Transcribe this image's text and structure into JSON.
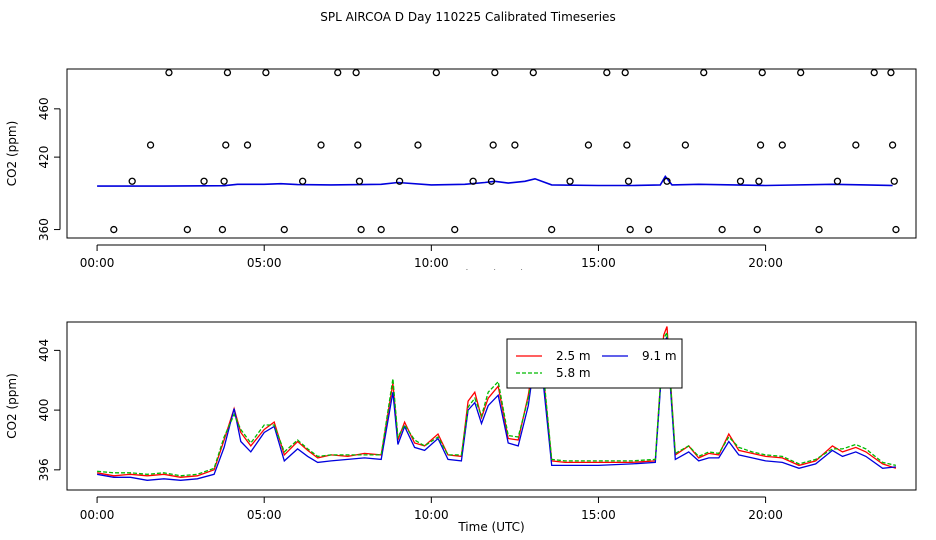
{
  "page_title": "SPL AIRCOA D  Day 110225  Calibrated Timeseries",
  "colors": {
    "red": "#ff0000",
    "green": "#00bb00",
    "blue": "#0000dd",
    "black": "#000000"
  },
  "chart_data": [
    {
      "type": "scatter+line",
      "xlabel": "Time (UTC)",
      "ylabel": "CO2 (ppm)",
      "xticks": [
        "00:00",
        "05:00",
        "10:00",
        "15:00",
        "20:00"
      ],
      "xtick_hours": [
        0,
        5,
        10,
        15,
        20
      ],
      "yticks": [
        360,
        420,
        460
      ],
      "ytick_labels": [
        "360",
        "420",
        "460"
      ],
      "xlim": [
        -0.9,
        24.5
      ],
      "ylim": [
        353,
        493
      ],
      "circles": [
        {
          "x": 0.5,
          "y": 360
        },
        {
          "x": 1.05,
          "y": 400
        },
        {
          "x": 1.6,
          "y": 430
        },
        {
          "x": 2.15,
          "y": 490
        },
        {
          "x": 2.7,
          "y": 360
        },
        {
          "x": 3.2,
          "y": 400
        },
        {
          "x": 3.75,
          "y": 360
        },
        {
          "x": 3.8,
          "y": 400
        },
        {
          "x": 3.85,
          "y": 430
        },
        {
          "x": 3.9,
          "y": 490
        },
        {
          "x": 4.5,
          "y": 430
        },
        {
          "x": 5.05,
          "y": 490
        },
        {
          "x": 5.6,
          "y": 360
        },
        {
          "x": 6.15,
          "y": 400
        },
        {
          "x": 6.7,
          "y": 430
        },
        {
          "x": 7.2,
          "y": 490
        },
        {
          "x": 7.75,
          "y": 490
        },
        {
          "x": 7.8,
          "y": 430
        },
        {
          "x": 7.85,
          "y": 400
        },
        {
          "x": 7.9,
          "y": 360
        },
        {
          "x": 8.5,
          "y": 360
        },
        {
          "x": 9.05,
          "y": 400
        },
        {
          "x": 9.6,
          "y": 430
        },
        {
          "x": 10.15,
          "y": 490
        },
        {
          "x": 10.7,
          "y": 360
        },
        {
          "x": 11.25,
          "y": 400
        },
        {
          "x": 11.8,
          "y": 400
        },
        {
          "x": 11.85,
          "y": 430
        },
        {
          "x": 11.9,
          "y": 490
        },
        {
          "x": 12.5,
          "y": 430
        },
        {
          "x": 13.05,
          "y": 490
        },
        {
          "x": 13.6,
          "y": 360
        },
        {
          "x": 14.15,
          "y": 400
        },
        {
          "x": 14.7,
          "y": 430
        },
        {
          "x": 15.25,
          "y": 490
        },
        {
          "x": 15.8,
          "y": 490
        },
        {
          "x": 15.85,
          "y": 430
        },
        {
          "x": 15.9,
          "y": 400
        },
        {
          "x": 15.95,
          "y": 360
        },
        {
          "x": 16.5,
          "y": 360
        },
        {
          "x": 17.05,
          "y": 400
        },
        {
          "x": 17.6,
          "y": 430
        },
        {
          "x": 18.15,
          "y": 490
        },
        {
          "x": 18.7,
          "y": 360
        },
        {
          "x": 19.25,
          "y": 400
        },
        {
          "x": 19.75,
          "y": 360
        },
        {
          "x": 19.8,
          "y": 400
        },
        {
          "x": 19.85,
          "y": 430
        },
        {
          "x": 19.9,
          "y": 490
        },
        {
          "x": 20.5,
          "y": 430
        },
        {
          "x": 21.05,
          "y": 490
        },
        {
          "x": 21.6,
          "y": 360
        },
        {
          "x": 22.15,
          "y": 400
        },
        {
          "x": 22.7,
          "y": 430
        },
        {
          "x": 23.25,
          "y": 490
        },
        {
          "x": 23.75,
          "y": 490
        },
        {
          "x": 23.8,
          "y": 430
        },
        {
          "x": 23.85,
          "y": 400
        },
        {
          "x": 23.9,
          "y": 360
        }
      ],
      "series": [
        {
          "color": "#0000dd",
          "x": [
            0,
            2,
            3.8,
            4.2,
            5,
            5.5,
            6,
            7,
            8.5,
            9,
            10,
            11,
            11.6,
            11.9,
            12.3,
            12.8,
            13.1,
            13.6,
            15,
            16,
            16.85,
            17.0,
            17.2,
            18,
            20,
            22,
            23,
            23.8
          ],
          "y": [
            396.0,
            396.0,
            396.3,
            397.5,
            397.5,
            398.0,
            397.2,
            397.0,
            397.5,
            399.0,
            397.0,
            397.5,
            399.0,
            400.0,
            398.5,
            400.0,
            402.0,
            397.0,
            396.5,
            396.5,
            397.0,
            404.0,
            397.0,
            397.5,
            396.5,
            397.5,
            397.0,
            396.5
          ]
        }
      ]
    },
    {
      "type": "line",
      "xlabel": "Time (UTC)",
      "ylabel": "CO2 (ppm)",
      "xticks": [
        "00:00",
        "05:00",
        "10:00",
        "15:00",
        "20:00"
      ],
      "xtick_hours": [
        0,
        5,
        10,
        15,
        20
      ],
      "yticks": [
        396,
        400,
        404
      ],
      "ytick_labels": [
        "396",
        "400",
        "404"
      ],
      "xlim": [
        -0.9,
        24.5
      ],
      "ylim": [
        394.65,
        405.9
      ],
      "legend": {
        "placement": "top-center",
        "entries": [
          {
            "label": "2.5 m",
            "color": "#ff0000"
          },
          {
            "label": "9.1 m",
            "color": "#0000dd"
          },
          {
            "label": "5.8 m",
            "color": "#00bb00"
          }
        ]
      },
      "base_x": [
        0,
        0.5,
        1,
        1.5,
        2,
        2.5,
        3,
        3.5,
        3.8,
        4.1,
        4.3,
        4.6,
        5.0,
        5.3,
        5.6,
        6.0,
        6.3,
        6.6,
        7.0,
        7.5,
        8.0,
        8.5,
        8.85,
        9.0,
        9.2,
        9.5,
        9.8,
        10.2,
        10.5,
        10.9,
        11.1,
        11.3,
        11.5,
        11.7,
        12.0,
        12.3,
        12.6,
        12.9,
        13.1,
        13.3,
        13.6,
        14.0,
        15.0,
        16.0,
        16.7,
        16.95,
        17.05,
        17.3,
        17.7,
        18.0,
        18.3,
        18.6,
        18.9,
        19.2,
        19.6,
        20.0,
        20.5,
        21.0,
        21.5,
        22.0,
        22.3,
        22.7,
        23.0,
        23.5,
        23.9
      ],
      "series": [
        {
          "name": "2.5 m",
          "color": "#ff0000",
          "y": [
            395.8,
            395.6,
            395.7,
            395.6,
            395.7,
            395.5,
            395.6,
            396.0,
            398.0,
            400.1,
            398.5,
            397.6,
            398.7,
            399.2,
            397.0,
            397.9,
            397.3,
            396.8,
            397.0,
            396.9,
            397.1,
            397.0,
            401.8,
            398.0,
            399.2,
            397.8,
            397.6,
            398.4,
            397.0,
            396.9,
            400.6,
            401.2,
            399.5,
            400.8,
            401.6,
            398.1,
            398.0,
            401.0,
            403.9,
            403.5,
            396.6,
            396.5,
            396.5,
            396.5,
            396.6,
            405.0,
            405.6,
            397.0,
            397.6,
            396.8,
            397.1,
            397.0,
            398.4,
            397.3,
            397.1,
            396.9,
            396.8,
            396.3,
            396.6,
            397.6,
            397.2,
            397.5,
            397.2,
            396.4,
            396.1
          ]
        },
        {
          "name": "9.1 m",
          "color": "#0000dd",
          "y": [
            395.7,
            395.5,
            395.5,
            395.3,
            395.4,
            395.3,
            395.4,
            395.7,
            397.5,
            400.1,
            397.9,
            397.2,
            398.5,
            398.9,
            396.6,
            397.4,
            396.9,
            396.5,
            396.6,
            396.7,
            396.8,
            396.7,
            401.2,
            397.7,
            398.9,
            397.5,
            397.3,
            398.1,
            396.7,
            396.6,
            400.0,
            400.5,
            399.1,
            400.3,
            401.0,
            397.8,
            397.6,
            400.3,
            403.5,
            402.9,
            396.3,
            396.3,
            396.3,
            396.4,
            396.5,
            404.5,
            404.9,
            396.7,
            397.2,
            396.6,
            396.8,
            396.8,
            397.9,
            397.0,
            396.8,
            396.6,
            396.5,
            396.1,
            396.4,
            397.3,
            396.9,
            397.2,
            396.9,
            396.1,
            396.2
          ]
        },
        {
          "name": "5.8 m",
          "color": "#00bb00",
          "y": [
            395.9,
            395.8,
            395.8,
            395.7,
            395.8,
            395.6,
            395.7,
            396.1,
            398.2,
            399.7,
            398.7,
            397.8,
            399.0,
            399.0,
            397.2,
            398.0,
            397.4,
            396.9,
            397.0,
            397.0,
            397.0,
            397.0,
            402.1,
            398.2,
            399.0,
            398.0,
            397.6,
            398.2,
            397.0,
            397.0,
            400.2,
            400.8,
            399.6,
            401.2,
            401.9,
            398.3,
            398.2,
            400.8,
            403.5,
            403.8,
            396.7,
            396.6,
            396.6,
            396.6,
            396.7,
            404.8,
            405.2,
            397.1,
            397.6,
            396.9,
            397.2,
            397.1,
            398.2,
            397.5,
            397.2,
            397.0,
            396.9,
            396.4,
            396.7,
            397.4,
            397.4,
            397.7,
            397.4,
            396.5,
            396.3
          ]
        }
      ]
    }
  ]
}
